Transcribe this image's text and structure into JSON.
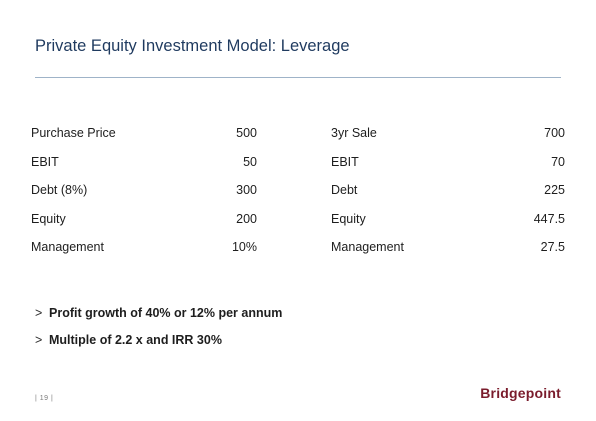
{
  "title": "Private Equity Investment Model: Leverage",
  "table": {
    "rows": [
      {
        "label_left": "Purchase Price",
        "value_left": "500",
        "label_right": "3yr Sale",
        "value_right": "700"
      },
      {
        "label_left": "EBIT",
        "value_left": "50",
        "label_right": "EBIT",
        "value_right": "70"
      },
      {
        "label_left": "Debt (8%)",
        "value_left": "300",
        "label_right": "Debt",
        "value_right": "225"
      },
      {
        "label_left": "Equity",
        "value_left": "200",
        "label_right": "Equity",
        "value_right": "447.5"
      },
      {
        "label_left": "Management",
        "value_left": "10%",
        "label_right": "Management",
        "value_right": "27.5"
      }
    ]
  },
  "bullets": [
    {
      "marker": ">",
      "text": "Profit growth of 40% or 12% per annum"
    },
    {
      "marker": ">",
      "text": "Multiple of 2.2 x and IRR 30%"
    }
  ],
  "footer": {
    "page_number": "| 19 |",
    "logo_text": "Bridgepoint"
  },
  "colors": {
    "title": "#1f3a5f",
    "rule": "#9fb3c8",
    "logo": "#7a1c2c"
  }
}
